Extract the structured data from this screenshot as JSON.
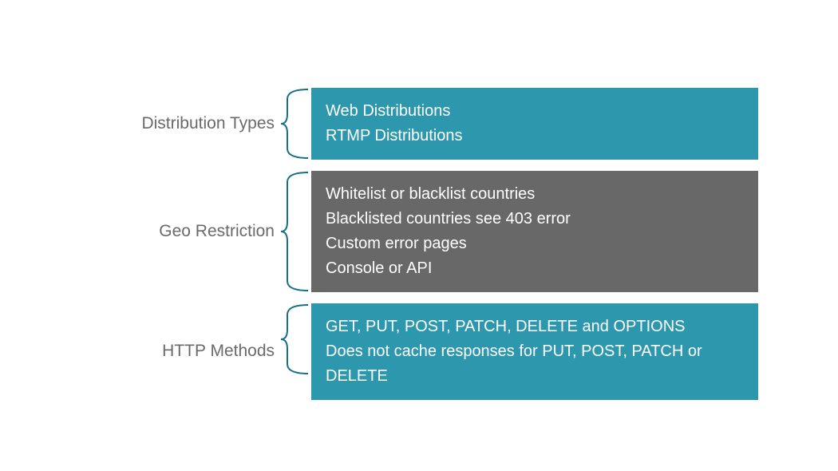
{
  "diagram": {
    "type": "brace-map",
    "background_color": "#ffffff",
    "label_color": "#6a6a6a",
    "label_fontsize": 21,
    "item_fontsize": 20,
    "item_text_color": "#ffffff",
    "brace_stroke_width": 2,
    "sections": [
      {
        "label": "Distribution Types",
        "box_color": "#2d97ad",
        "brace_color": "#177088",
        "items": [
          "Web Distributions",
          "RTMP Distributions"
        ]
      },
      {
        "label": "Geo Restriction",
        "box_color": "#686868",
        "brace_color": "#177088",
        "items": [
          "Whitelist or blacklist countries",
          "Blacklisted countries see 403 error",
          "Custom error pages",
          "Console or API"
        ]
      },
      {
        "label": "HTTP Methods",
        "box_color": "#2d97ad",
        "brace_color": "#177088",
        "items": [
          "GET, PUT, POST, PATCH, DELETE and OPTIONS",
          "Does not cache responses for PUT, POST, PATCH or DELETE"
        ]
      }
    ]
  }
}
